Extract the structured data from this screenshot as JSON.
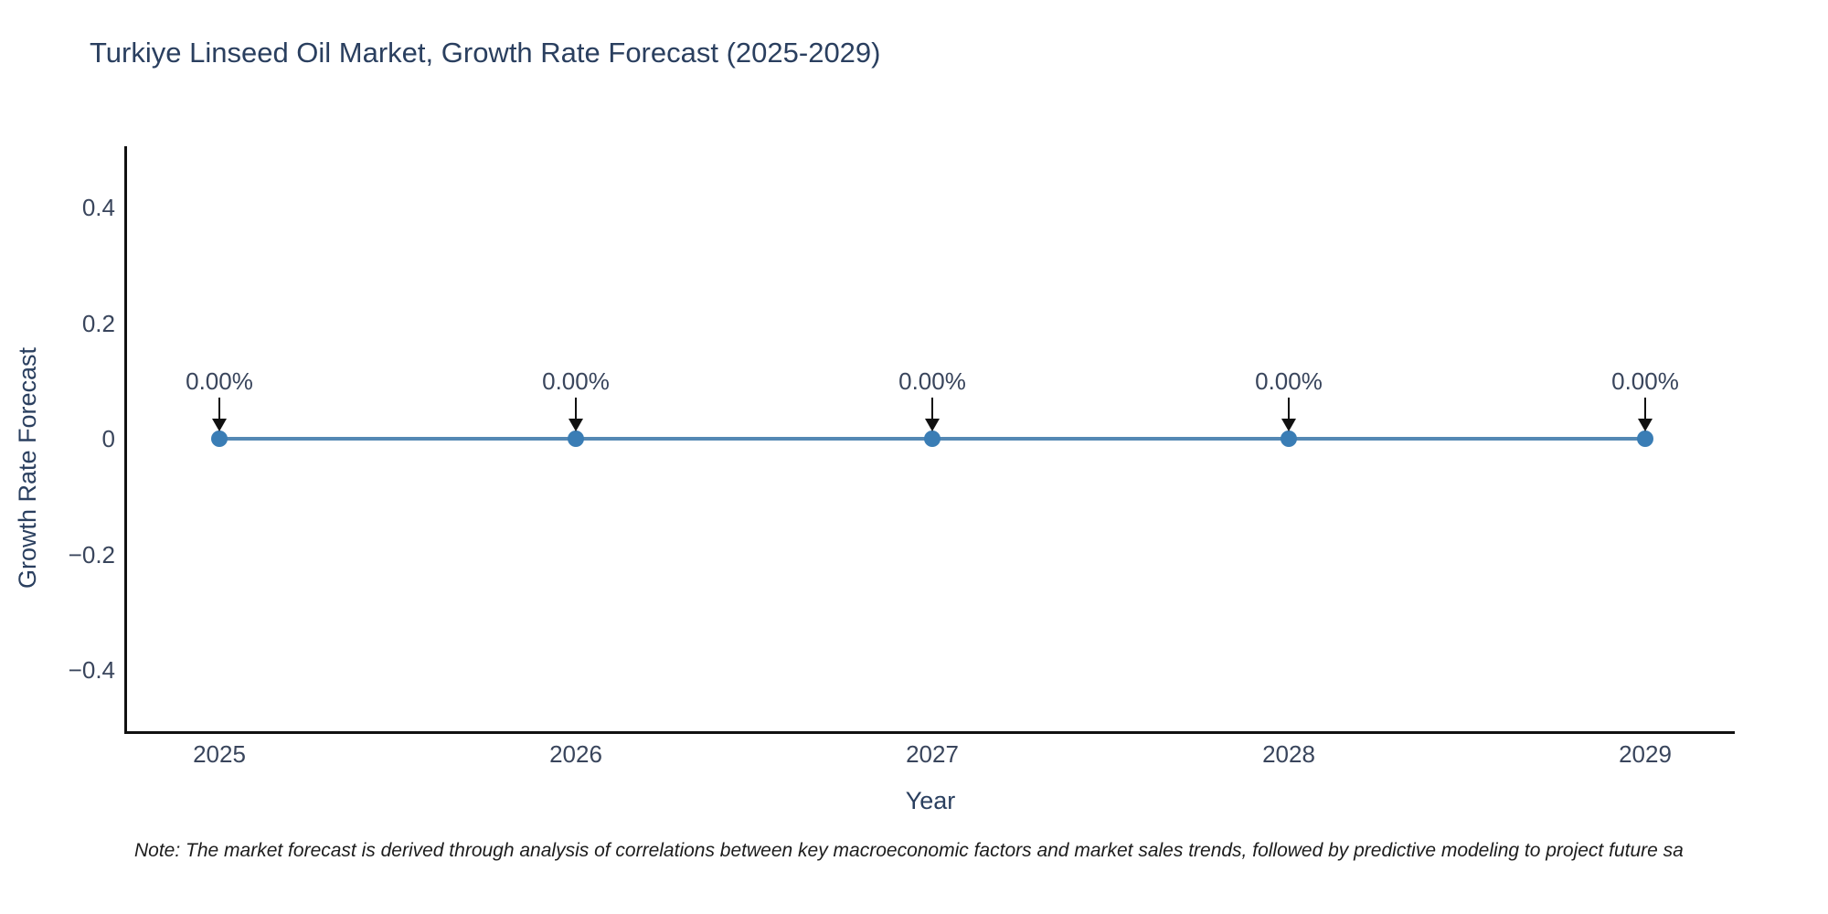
{
  "title": "Turkiye Linseed Oil Market, Growth Rate Forecast (2025-2029)",
  "note": "Note: The market forecast is derived through analysis of correlations between key macroeconomic factors and market sales trends, followed by predictive modeling to project future sa",
  "chart_data": {
    "type": "line",
    "title": "Turkiye Linseed Oil Market, Growth Rate Forecast (2025-2029)",
    "xlabel": "Year",
    "ylabel": "Growth Rate Forecast",
    "categories": [
      "2025",
      "2026",
      "2027",
      "2028",
      "2029"
    ],
    "series": [
      {
        "name": "Growth Rate Forecast",
        "values": [
          0,
          0,
          0,
          0,
          0
        ]
      }
    ],
    "point_labels": [
      "0.00%",
      "0.00%",
      "0.00%",
      "0.00%",
      "0.00%"
    ],
    "yticks": [
      {
        "label": "0.4",
        "value": 0.4
      },
      {
        "label": "0.2",
        "value": 0.2
      },
      {
        "label": "0",
        "value": 0
      },
      {
        "label": "−0.2",
        "value": -0.2
      },
      {
        "label": "−0.4",
        "value": -0.4
      }
    ],
    "ylim": [
      -0.51,
      0.51
    ],
    "grid": false,
    "legend_position": "none",
    "annotation_arrows": true,
    "colors": {
      "background": "#ffffff",
      "title": "#2a3f5f",
      "tick": "#39455c",
      "axis": "#111111",
      "line": "#5488b4",
      "marker": "#3a7db5",
      "arrow": "#111111",
      "note": "#1c1c1c"
    }
  }
}
